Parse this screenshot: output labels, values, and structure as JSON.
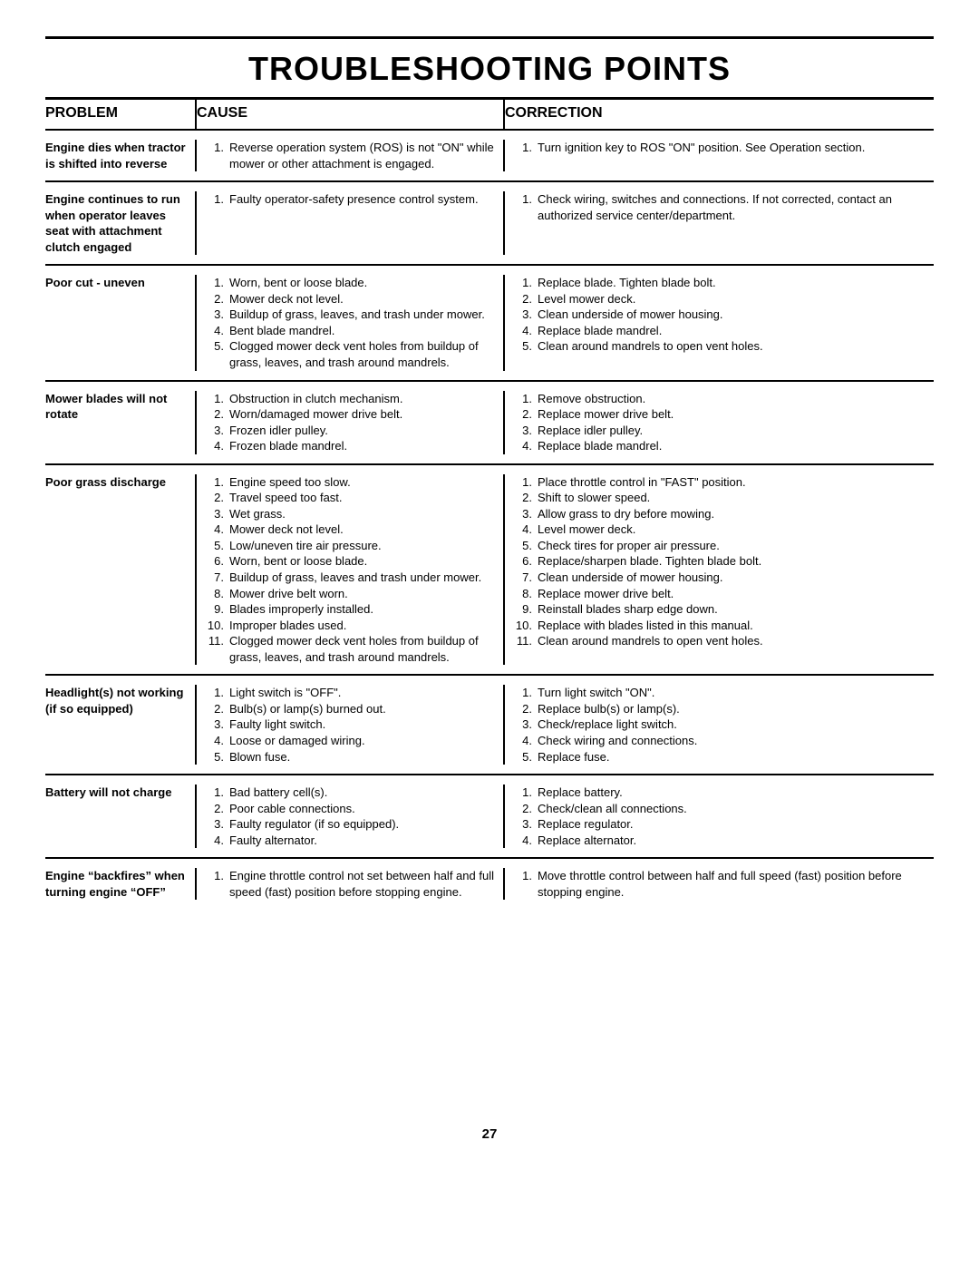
{
  "title": "TROUBLESHOOTING POINTS",
  "headers": {
    "problem": "PROBLEM",
    "cause": "CAUSE",
    "correction": "CORRECTION"
  },
  "page_number": "27",
  "rows": [
    {
      "problem": "Engine dies when tractor is shifted into reverse",
      "causes": [
        "Reverse operation system (ROS) is not \"ON\" while mower or other attachment is engaged."
      ],
      "corrections": [
        "Turn ignition key to ROS \"ON\" position. See Operation section."
      ]
    },
    {
      "problem": "Engine continues to run when operator leaves seat with attachment clutch engaged",
      "causes": [
        "Faulty operator-safety presence control system."
      ],
      "corrections": [
        "Check wiring, switches and connections. If not corrected, contact an authorized service center/department."
      ]
    },
    {
      "problem": "Poor cut - uneven",
      "causes": [
        "Worn, bent or loose blade.",
        "Mower deck not level.",
        "Buildup of grass, leaves, and trash under mower.",
        "Bent blade mandrel.",
        "Clogged mower deck vent holes from buildup of grass, leaves, and trash around mandrels."
      ],
      "corrections": [
        "Replace blade. Tighten blade bolt.",
        "Level mower deck.",
        "Clean underside of mower housing.",
        "Replace blade mandrel.",
        "Clean around mandrels to open vent holes."
      ]
    },
    {
      "problem": "Mower blades will not rotate",
      "causes": [
        "Obstruction in clutch mechanism.",
        "Worn/damaged mower drive belt.",
        "Frozen idler pulley.",
        "Frozen blade mandrel."
      ],
      "corrections": [
        "Remove obstruction.",
        "Replace mower drive belt.",
        "Replace idler pulley.",
        "Replace blade mandrel."
      ]
    },
    {
      "problem": "Poor grass discharge",
      "causes": [
        "Engine speed too slow.",
        "Travel speed too fast.",
        "Wet grass.",
        "Mower deck not level.",
        "Low/uneven tire air pressure.",
        "Worn, bent or loose blade.",
        "Buildup of grass, leaves and trash under mower.",
        "Mower drive belt worn.",
        "Blades improperly installed.",
        "Improper blades used.",
        "Clogged mower deck vent holes from buildup of grass, leaves, and trash around mandrels."
      ],
      "corrections": [
        "Place throttle control in \"FAST\" position.",
        "Shift to slower speed.",
        "Allow grass to dry before mowing.",
        "Level mower deck.",
        "Check tires for proper air pressure.",
        "Replace/sharpen blade. Tighten blade bolt.",
        "Clean underside of mower housing.",
        "Replace mower drive belt.",
        "Reinstall blades sharp edge down.",
        "Replace with blades listed in this manual.",
        "Clean around mandrels to open vent holes."
      ]
    },
    {
      "problem": "Headlight(s) not working (if so equipped)",
      "causes": [
        "Light switch is \"OFF\".",
        "Bulb(s) or lamp(s) burned out.",
        "Faulty light switch.",
        "Loose or damaged wiring.",
        "Blown fuse."
      ],
      "corrections": [
        "Turn light switch \"ON\".",
        "Replace bulb(s) or lamp(s).",
        "Check/replace light switch.",
        "Check wiring and connections.",
        "Replace fuse."
      ]
    },
    {
      "problem": "Battery will not charge",
      "causes": [
        "Bad battery cell(s).",
        "Poor cable connections.",
        "Faulty regulator (if so equipped).",
        "Faulty alternator."
      ],
      "corrections": [
        "Replace battery.",
        "Check/clean all connections.",
        "Replace regulator.",
        "Replace alternator."
      ]
    },
    {
      "problem": "Engine “backfires” when turning engine “OFF”",
      "causes": [
        "Engine throttle control not set between half and full speed (fast) position before stopping engine."
      ],
      "corrections": [
        "Move throttle control between half and full speed (fast) position before stopping engine."
      ]
    }
  ]
}
